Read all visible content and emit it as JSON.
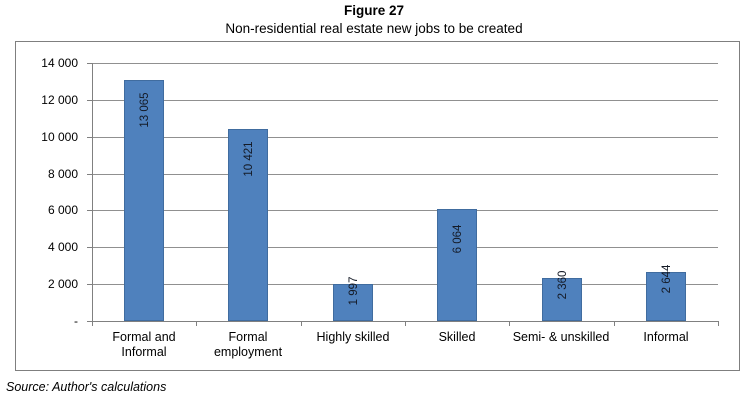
{
  "chart_data": {
    "type": "bar",
    "title": "Figure 27",
    "subtitle": "Non-residential real estate new jobs to be created",
    "source": "Source: Author's calculations",
    "categories": [
      "Formal and\nInformal",
      "Formal\nemployment",
      "Highly skilled",
      "Skilled",
      "Semi- & unskilled",
      "Informal"
    ],
    "values": [
      13065,
      10421,
      1997,
      6064,
      2360,
      2644
    ],
    "value_labels": [
      "13 065",
      "10 421",
      "1 997",
      "6 064",
      "2 360",
      "2 644"
    ],
    "ylim": [
      0,
      14000
    ],
    "ytick_step": 2000,
    "ytick_labels": [
      "-",
      "2 000",
      "4 000",
      "6 000",
      "8 000",
      "10 000",
      "12 000",
      "14 000"
    ],
    "legend": null,
    "grid": "horizontal",
    "colors": {
      "bar_fill": "#4F81BD",
      "gridline": "#909090",
      "axis": "#808080",
      "chart_border": "#7F7F7F",
      "text": "#000000"
    }
  }
}
